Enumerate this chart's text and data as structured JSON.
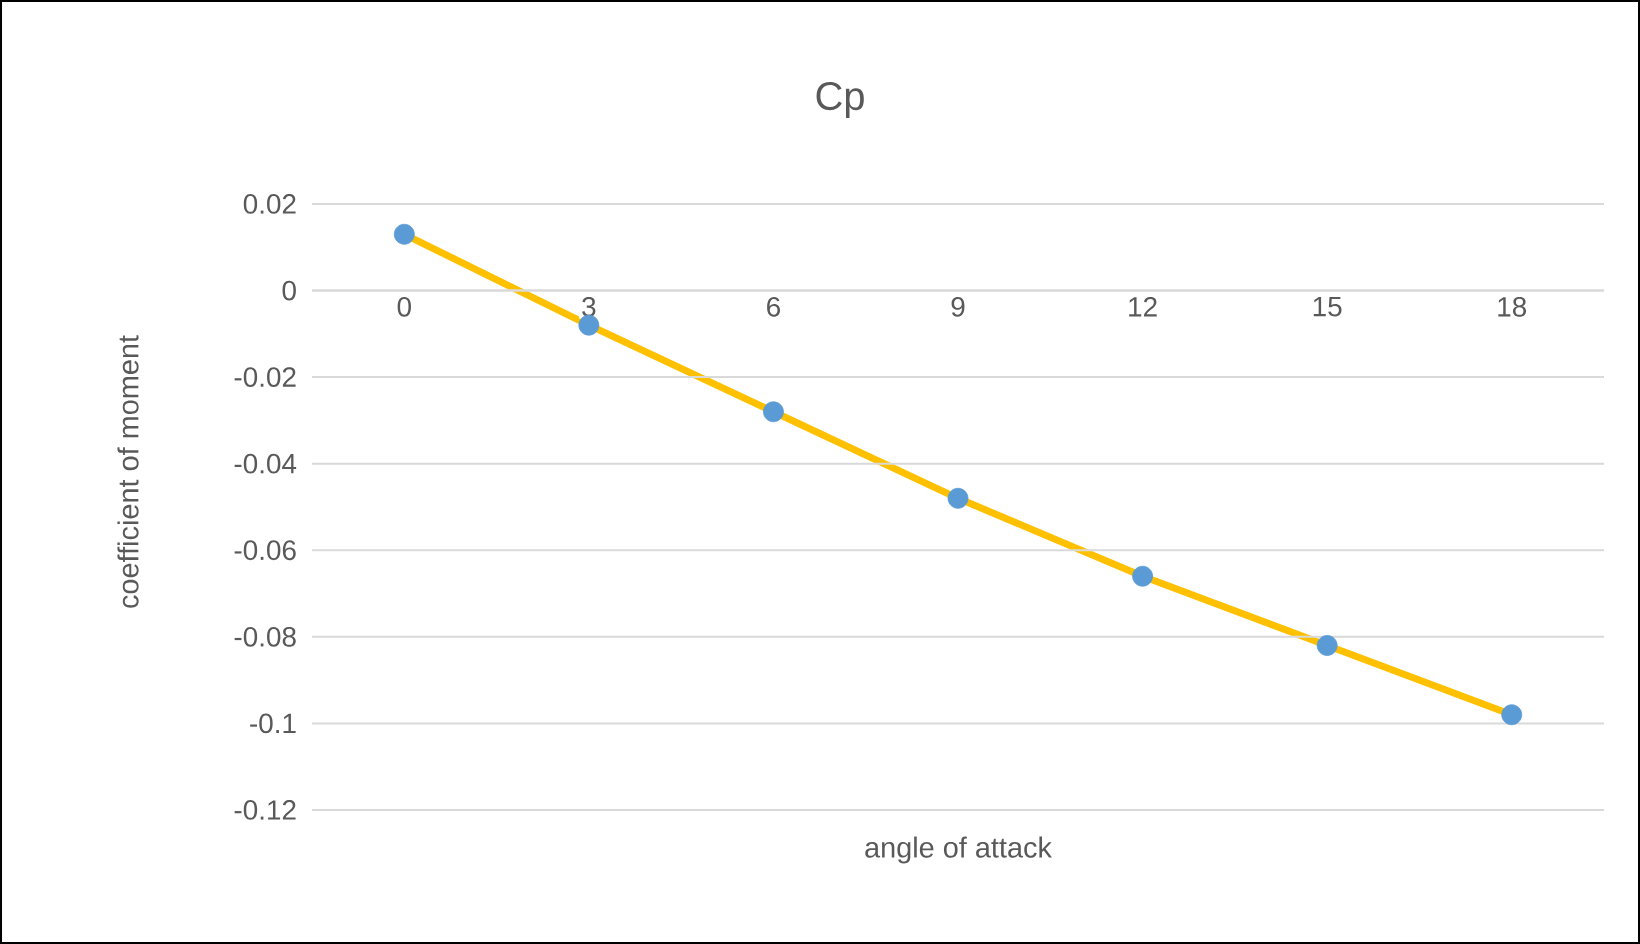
{
  "chart_data": {
    "type": "line",
    "title": "Cp",
    "xlabel": "angle of attack",
    "ylabel": "coefficient of moment",
    "categories": [
      "0",
      "3",
      "6",
      "9",
      "12",
      "15",
      "18"
    ],
    "series": [
      {
        "color": "#ffc000",
        "colors": [
          "#5b9bd5",
          "#5b9bd5",
          "#5b9bd5",
          "#5b9bd5",
          "#5b9bd5",
          "#5b9bd5",
          "#5b9bd5"
        ],
        "values": [
          0.013,
          -0.008,
          -0.028,
          -0.048,
          -0.066,
          -0.082,
          -0.098
        ]
      }
    ],
    "ylim": [
      -0.12,
      0.02
    ],
    "yticks": [
      0.02,
      0,
      -0.02,
      -0.04,
      -0.06,
      -0.08,
      -0.1,
      -0.12
    ],
    "grid": "y",
    "marker": "circle",
    "line_style": "solid"
  }
}
